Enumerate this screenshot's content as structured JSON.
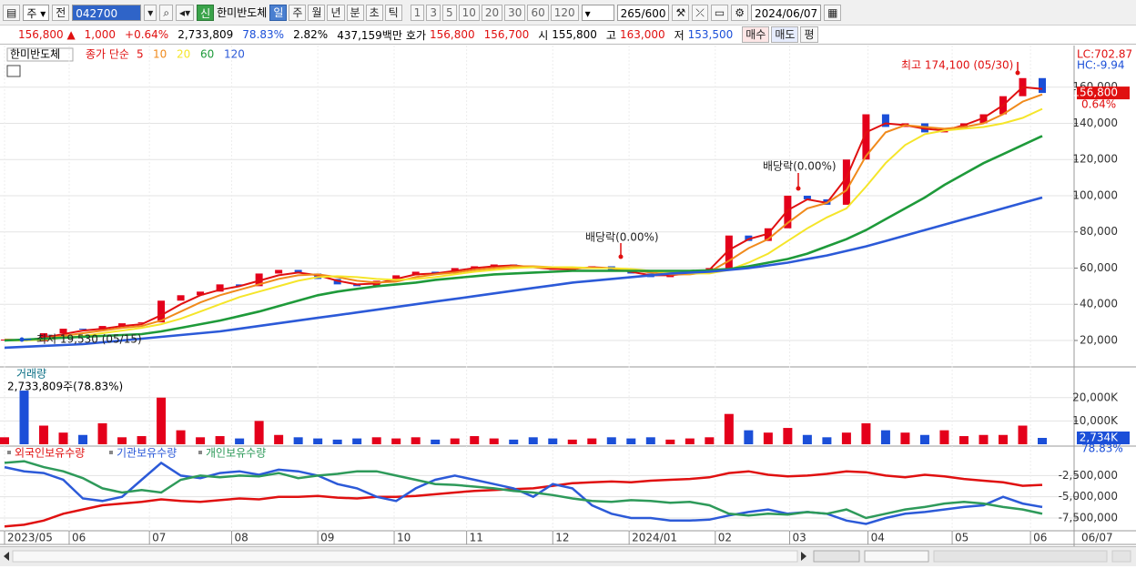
{
  "toolbar": {
    "period": "주",
    "prev": "전",
    "code": "042700",
    "badge": "신",
    "name": "한미반도체",
    "intervals": [
      "일",
      "주",
      "월",
      "년",
      "분",
      "초",
      "틱"
    ],
    "counts": [
      "1",
      "3",
      "5",
      "10",
      "20",
      "30",
      "60",
      "120"
    ],
    "bars": "265",
    "max_bars": "/600",
    "date": "2024/06/07"
  },
  "quote": {
    "price": "156,800 ▲",
    "change": "1,000",
    "change_pct": "+0.64%",
    "volume": "2,733,809",
    "volume_ratio": "78.83%",
    "turnover_rate": "2.82%",
    "amount": "437,159백만",
    "bid_ask_label": "호가",
    "ask": "156,800",
    "bid": "156,700",
    "open_label": "시",
    "open": "155,800",
    "high_label": "고",
    "high": "163,000",
    "low_label": "저",
    "low": "153,500",
    "buy": "매수",
    "sell": "매도",
    "avg": "평"
  },
  "chart_data": [
    {
      "type": "candlestick",
      "title": "한미반도체",
      "legend_title": "종가 단순",
      "values": [
        20500,
        19600,
        24000,
        26500,
        26000,
        28000,
        29500,
        30000,
        42000,
        45000,
        47000,
        51000,
        50000,
        57000,
        59000,
        57000,
        54000,
        51000,
        50000,
        53000,
        56000,
        58000,
        57000,
        60000,
        61000,
        62000,
        61000,
        60000,
        59000,
        60000,
        61000,
        59000,
        57000,
        55000,
        57000,
        58000,
        60000,
        78000,
        75000,
        82000,
        100000,
        98000,
        95000,
        120000,
        145000,
        138000,
        140000,
        135000,
        137000,
        140000,
        145000,
        155000,
        165000,
        156800
      ],
      "series": [
        {
          "name": "5",
          "color": "#e01010",
          "values": [
            20500,
            20000,
            21500,
            23500,
            25500,
            26500,
            28000,
            29000,
            34000,
            40000,
            45000,
            48000,
            50000,
            53000,
            56000,
            57500,
            56000,
            53000,
            51000,
            51500,
            54000,
            56500,
            57000,
            58500,
            60000,
            61000,
            61500,
            60500,
            59500,
            59500,
            60500,
            60000,
            58000,
            56000,
            56000,
            57000,
            59000,
            70000,
            76000,
            79000,
            92000,
            98000,
            96000,
            110000,
            135000,
            140000,
            139000,
            137000,
            136000,
            139000,
            143000,
            150000,
            160000,
            159000
          ]
        },
        {
          "name": "10",
          "color": "#f08a1c",
          "values": [
            20500,
            20200,
            21000,
            22500,
            24000,
            25500,
            27000,
            28000,
            31000,
            36000,
            41000,
            45000,
            48000,
            51000,
            54000,
            56000,
            56500,
            55000,
            53000,
            52000,
            52500,
            55000,
            56500,
            57500,
            59000,
            60000,
            61000,
            61000,
            60500,
            60000,
            60000,
            60000,
            59000,
            57500,
            56500,
            56500,
            58000,
            64000,
            71000,
            76000,
            85000,
            93000,
            96000,
            103000,
            122000,
            135000,
            139000,
            138000,
            137000,
            138000,
            140000,
            145000,
            152000,
            156000
          ]
        },
        {
          "name": "20",
          "color": "#f5e52a",
          "values": [
            20000,
            20000,
            20500,
            21500,
            22500,
            24000,
            25500,
            27000,
            29000,
            32000,
            36000,
            40000,
            44000,
            47000,
            50000,
            53000,
            55000,
            55500,
            55000,
            54000,
            53500,
            54000,
            55000,
            56500,
            58000,
            59000,
            60000,
            60500,
            60500,
            60500,
            60000,
            60000,
            59500,
            58500,
            57500,
            57000,
            57000,
            59000,
            63000,
            68000,
            75000,
            82000,
            88000,
            93000,
            105000,
            118000,
            128000,
            134000,
            136000,
            137000,
            138000,
            140000,
            143000,
            148000
          ]
        },
        {
          "name": "60",
          "color": "#1e9a3a",
          "values": [
            20000,
            20500,
            21000,
            21500,
            22000,
            22500,
            23000,
            23500,
            25000,
            27000,
            29000,
            31000,
            33500,
            36000,
            39000,
            42000,
            45000,
            47000,
            48500,
            50000,
            51000,
            52000,
            53500,
            54500,
            55500,
            56500,
            57000,
            57500,
            58000,
            58500,
            58500,
            58500,
            58500,
            58500,
            58500,
            58500,
            58800,
            59500,
            61000,
            63000,
            65000,
            68000,
            72000,
            76000,
            81000,
            87000,
            93000,
            99000,
            106000,
            112000,
            118000,
            123000,
            128000,
            133000
          ]
        },
        {
          "name": "120",
          "color": "#2c5ad8",
          "values": [
            16000,
            16500,
            17000,
            17500,
            18000,
            19000,
            20000,
            21000,
            22000,
            23000,
            24000,
            25000,
            26500,
            28000,
            29500,
            31000,
            32500,
            34000,
            35500,
            37000,
            38500,
            40000,
            41500,
            43000,
            44500,
            46000,
            47500,
            49000,
            50500,
            52000,
            53000,
            54000,
            55000,
            56000,
            57000,
            57500,
            58000,
            59000,
            60000,
            61500,
            63000,
            65000,
            67000,
            69500,
            72000,
            75000,
            78000,
            81000,
            84000,
            87000,
            90000,
            93000,
            96000,
            99000
          ]
        }
      ],
      "ylim": [
        5400,
        182000
      ],
      "yticks": [
        {
          "value": 20000,
          "label": "20,000"
        },
        {
          "value": 40000,
          "label": "40,000"
        },
        {
          "value": 60000,
          "label": "60,000"
        },
        {
          "value": 80000,
          "label": "80,000"
        },
        {
          "value": 100000,
          "label": "100,000"
        },
        {
          "value": 120000,
          "label": "120,000"
        },
        {
          "value": 140000,
          "label": "140,000"
        },
        {
          "value": 160000,
          "label": "160,000"
        }
      ],
      "xticks": [
        {
          "value": 0,
          "label": "2023/05"
        },
        {
          "value": 3.3,
          "label": "06"
        },
        {
          "value": 7.4,
          "label": "07"
        },
        {
          "value": 11.6,
          "label": "08"
        },
        {
          "value": 16.0,
          "label": "09"
        },
        {
          "value": 19.9,
          "label": "10"
        },
        {
          "value": 23.6,
          "label": "11"
        },
        {
          "value": 28.0,
          "label": "12"
        },
        {
          "value": 31.9,
          "label": "2024/01"
        },
        {
          "value": 36.3,
          "label": "02"
        },
        {
          "value": 40.1,
          "label": "03"
        },
        {
          "value": 44.1,
          "label": "04"
        },
        {
          "value": 48.4,
          "label": "05"
        },
        {
          "value": 52.4,
          "label": "06"
        }
      ],
      "grid": true,
      "annotations": [
        "최고 174,100 (05/30)",
        "최저 19,530 (05/15)",
        "배당락(0.00%)",
        "배당락(0.00%)"
      ],
      "lc": "LC:702.87",
      "hc": "HC:-9.94",
      "price_tag": "156,800",
      "change_tag": "0.64%"
    },
    {
      "type": "bar",
      "title": "거래량",
      "subtitle": "2,733,809주(78.83%)",
      "values": [
        3000,
        23000,
        8000,
        5000,
        4000,
        9000,
        3000,
        3500,
        20000,
        6000,
        3000,
        3500,
        2500,
        10000,
        4000,
        3000,
        2500,
        2000,
        2500,
        3000,
        2500,
        3000,
        2000,
        2500,
        3500,
        2500,
        2000,
        3000,
        2500,
        2000,
        2500,
        3000,
        2500,
        3000,
        2000,
        2500,
        3000,
        13000,
        6000,
        5000,
        7000,
        4000,
        3000,
        5000,
        9000,
        6000,
        5000,
        4000,
        6000,
        3500,
        4000,
        4000,
        8000,
        2734
      ],
      "ylim": [
        0,
        32000
      ],
      "yticks": [
        {
          "value": 10000,
          "label": "10,000K"
        },
        {
          "value": 20000,
          "label": "20,000K"
        }
      ],
      "last_label": "2,734K",
      "ratio_label": "78.83%"
    },
    {
      "type": "line",
      "series": [
        {
          "name": "외국인보유수량",
          "color": "#e01010",
          "values": [
            -8500000,
            -8300000,
            -7800000,
            -7000000,
            -6500000,
            -6000000,
            -5800000,
            -5600000,
            -5300000,
            -5500000,
            -5600000,
            -5400000,
            -5200000,
            -5300000,
            -5000000,
            -5000000,
            -4900000,
            -5100000,
            -5200000,
            -5000000,
            -5000000,
            -4900000,
            -4700000,
            -4500000,
            -4300000,
            -4200000,
            -4100000,
            -4000000,
            -3700000,
            -3400000,
            -3300000,
            -3200000,
            -3300000,
            -3100000,
            -3000000,
            -2900000,
            -2700000,
            -2200000,
            -2000000,
            -2400000,
            -2600000,
            -2500000,
            -2300000,
            -2000000,
            -2100000,
            -2500000,
            -2700000,
            -2400000,
            -2600000,
            -2900000,
            -3100000,
            -3300000,
            -3700000,
            -3600000
          ]
        },
        {
          "name": "기관보유수량",
          "color": "#2c5ad8",
          "values": [
            -1500000,
            -2000000,
            -2200000,
            -3000000,
            -5200000,
            -5500000,
            -5000000,
            -3000000,
            -1000000,
            -2500000,
            -2800000,
            -2200000,
            -2000000,
            -2400000,
            -1800000,
            -2000000,
            -2500000,
            -3500000,
            -4000000,
            -5000000,
            -5500000,
            -4000000,
            -3000000,
            -2500000,
            -3000000,
            -3500000,
            -4000000,
            -5000000,
            -3500000,
            -4000000,
            -6000000,
            -7000000,
            -7500000,
            -7500000,
            -7800000,
            -7800000,
            -7700000,
            -7200000,
            -6800000,
            -6500000,
            -7000000,
            -6800000,
            -7000000,
            -7800000,
            -8200000,
            -7500000,
            -7000000,
            -6800000,
            -6500000,
            -6200000,
            -6000000,
            -5000000,
            -5800000,
            -6200000
          ]
        },
        {
          "name": "개인보유수량",
          "color": "#2e9a5a",
          "values": [
            -1000000,
            -800000,
            -1500000,
            -2000000,
            -2800000,
            -4000000,
            -4500000,
            -4200000,
            -4500000,
            -3000000,
            -2500000,
            -2700000,
            -2500000,
            -2600000,
            -2200000,
            -2800000,
            -2500000,
            -2300000,
            -2000000,
            -2000000,
            -2500000,
            -3000000,
            -3500000,
            -3600000,
            -3800000,
            -4000000,
            -4300000,
            -4500000,
            -4800000,
            -5200000,
            -5500000,
            -5600000,
            -5400000,
            -5500000,
            -5700000,
            -5600000,
            -6000000,
            -7000000,
            -7200000,
            -7000000,
            -7100000,
            -6800000,
            -7000000,
            -6500000,
            -7500000,
            -7000000,
            -6500000,
            -6200000,
            -5800000,
            -5600000,
            -5800000,
            -6200000,
            -6500000,
            -7000000
          ]
        }
      ],
      "ylim": [
        -8900000,
        870000
      ],
      "yticks": [
        {
          "value": -2500000,
          "label": "-2,500,000"
        },
        {
          "value": -5000000,
          "label": "-5,000,000"
        },
        {
          "value": -7500000,
          "label": "-7,500,000"
        }
      ],
      "last_date_label": "06/07"
    }
  ]
}
